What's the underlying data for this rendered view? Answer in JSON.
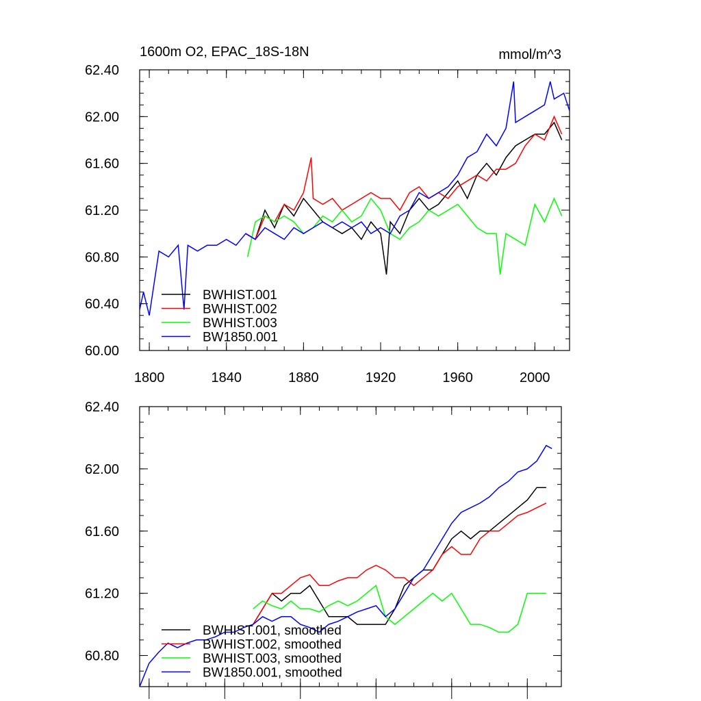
{
  "chart_data": [
    {
      "type": "line",
      "title": "1600m O2, EPAC_18S-18N",
      "units": "mmol/m^3",
      "xlim": [
        1795,
        2018
      ],
      "ylim": [
        60.0,
        62.4
      ],
      "xticks": [
        1800,
        1840,
        1880,
        1920,
        1960,
        2000
      ],
      "yticks": [
        "60.00",
        "60.40",
        "60.80",
        "61.20",
        "61.60",
        "62.00",
        "62.40"
      ],
      "legend_position": "bottom-left",
      "series": [
        {
          "name": "BWHIST.001",
          "color": "#000000",
          "x": [
            1850,
            1855,
            1860,
            1865,
            1870,
            1875,
            1880,
            1885,
            1890,
            1895,
            1900,
            1905,
            1910,
            1915,
            1920,
            1923,
            1925,
            1930,
            1935,
            1940,
            1945,
            1950,
            1955,
            1960,
            1965,
            1970,
            1975,
            1980,
            1985,
            1990,
            1995,
            2000,
            2005,
            2010,
            2014
          ],
          "values": [
            61.0,
            60.95,
            61.2,
            61.05,
            61.25,
            61.15,
            61.3,
            61.2,
            61.1,
            61.05,
            61.0,
            61.05,
            60.95,
            61.1,
            61.0,
            60.65,
            61.1,
            61.0,
            61.2,
            61.3,
            61.2,
            61.25,
            61.35,
            61.45,
            61.3,
            61.5,
            61.6,
            61.5,
            61.65,
            61.75,
            61.8,
            61.85,
            61.85,
            61.95,
            61.8
          ]
        },
        {
          "name": "BWHIST.002",
          "color": "#ff0000",
          "x": [
            1850,
            1855,
            1860,
            1865,
            1870,
            1875,
            1880,
            1884,
            1885,
            1890,
            1895,
            1900,
            1905,
            1910,
            1915,
            1920,
            1925,
            1930,
            1935,
            1940,
            1945,
            1950,
            1955,
            1960,
            1965,
            1970,
            1975,
            1980,
            1985,
            1990,
            1995,
            2000,
            2005,
            2010,
            2014
          ],
          "values": [
            61.0,
            60.95,
            61.15,
            61.1,
            61.25,
            61.2,
            61.35,
            61.65,
            61.3,
            61.25,
            61.3,
            61.2,
            61.25,
            61.3,
            61.35,
            61.3,
            61.3,
            61.2,
            61.35,
            61.4,
            61.3,
            61.35,
            61.3,
            61.4,
            61.45,
            61.5,
            61.45,
            61.55,
            61.55,
            61.6,
            61.75,
            61.85,
            61.8,
            62.0,
            61.85
          ]
        },
        {
          "name": "BWHIST.003",
          "color": "#00ff00",
          "x": [
            1851,
            1855,
            1860,
            1865,
            1870,
            1875,
            1880,
            1885,
            1890,
            1895,
            1900,
            1905,
            1910,
            1915,
            1920,
            1925,
            1930,
            1935,
            1940,
            1945,
            1950,
            1955,
            1960,
            1965,
            1970,
            1975,
            1980,
            1982,
            1985,
            1990,
            1995,
            2000,
            2005,
            2010,
            2014
          ],
          "values": [
            60.8,
            61.1,
            61.15,
            61.1,
            61.15,
            61.1,
            61.0,
            61.05,
            61.15,
            61.1,
            61.2,
            61.1,
            61.15,
            61.3,
            61.2,
            61.0,
            60.95,
            61.05,
            61.1,
            61.2,
            61.15,
            61.2,
            61.25,
            61.15,
            61.05,
            61.0,
            61.0,
            60.65,
            61.0,
            60.95,
            60.9,
            61.25,
            61.1,
            61.3,
            61.15
          ]
        },
        {
          "name": "BW1850.001",
          "color": "#0000ff",
          "x": [
            1795,
            1797,
            1800,
            1805,
            1810,
            1815,
            1818,
            1820,
            1825,
            1830,
            1835,
            1840,
            1845,
            1850,
            1855,
            1860,
            1865,
            1870,
            1875,
            1880,
            1885,
            1890,
            1895,
            1900,
            1905,
            1910,
            1915,
            1920,
            1925,
            1930,
            1935,
            1940,
            1945,
            1950,
            1955,
            1960,
            1965,
            1970,
            1975,
            1980,
            1985,
            1989,
            1990,
            1995,
            2000,
            2005,
            2008,
            2010,
            2015,
            2018
          ],
          "values": [
            60.35,
            60.5,
            60.3,
            60.85,
            60.8,
            60.9,
            60.35,
            60.9,
            60.85,
            60.9,
            60.9,
            60.95,
            60.9,
            61.0,
            60.95,
            61.05,
            61.0,
            60.95,
            61.05,
            61.0,
            61.05,
            61.1,
            61.05,
            61.1,
            61.05,
            61.1,
            61.0,
            61.05,
            61.0,
            61.15,
            61.2,
            61.35,
            61.3,
            61.35,
            61.4,
            61.5,
            61.65,
            61.7,
            61.85,
            61.75,
            61.9,
            62.3,
            61.95,
            62.0,
            62.05,
            62.1,
            62.3,
            62.15,
            62.2,
            62.05
          ]
        }
      ]
    },
    {
      "type": "line",
      "title": "",
      "xlim": [
        1795,
        2018
      ],
      "ylim": [
        60.6,
        62.4
      ],
      "yticks": [
        "60.80",
        "61.20",
        "61.60",
        "62.00",
        "62.40"
      ],
      "legend_position": "bottom-left",
      "series": [
        {
          "name": "BWHIST.001, smoothed",
          "color": "#000000",
          "x": [
            1855,
            1860,
            1865,
            1870,
            1875,
            1880,
            1885,
            1890,
            1895,
            1900,
            1905,
            1910,
            1915,
            1920,
            1925,
            1930,
            1935,
            1940,
            1945,
            1950,
            1955,
            1960,
            1965,
            1970,
            1975,
            1980,
            1985,
            1990,
            1995,
            2000,
            2005,
            2010
          ],
          "values": [
            61.0,
            61.1,
            61.2,
            61.15,
            61.2,
            61.2,
            61.25,
            61.15,
            61.05,
            61.05,
            61.05,
            61.0,
            61.0,
            61.0,
            61.0,
            61.1,
            61.25,
            61.3,
            61.35,
            61.35,
            61.45,
            61.55,
            61.6,
            61.55,
            61.6,
            61.6,
            61.65,
            61.7,
            61.75,
            61.8,
            61.88,
            61.88
          ]
        },
        {
          "name": "BWHIST.002, smoothed",
          "color": "#ff0000",
          "x": [
            1855,
            1860,
            1865,
            1870,
            1875,
            1880,
            1885,
            1890,
            1895,
            1900,
            1905,
            1910,
            1915,
            1920,
            1925,
            1930,
            1935,
            1940,
            1945,
            1950,
            1955,
            1960,
            1965,
            1970,
            1975,
            1980,
            1985,
            1990,
            1995,
            2000,
            2005,
            2010
          ],
          "values": [
            61.0,
            61.1,
            61.2,
            61.2,
            61.25,
            61.3,
            61.32,
            61.25,
            61.25,
            61.28,
            61.3,
            61.3,
            61.35,
            61.38,
            61.35,
            61.3,
            61.3,
            61.25,
            61.3,
            61.35,
            61.45,
            61.5,
            61.45,
            61.45,
            61.55,
            61.6,
            61.6,
            61.65,
            61.7,
            61.72,
            61.75,
            61.78
          ]
        },
        {
          "name": "BWHIST.003, smoothed",
          "color": "#00ff00",
          "x": [
            1855,
            1860,
            1865,
            1870,
            1875,
            1880,
            1885,
            1890,
            1895,
            1900,
            1905,
            1910,
            1915,
            1920,
            1925,
            1930,
            1935,
            1940,
            1945,
            1950,
            1955,
            1960,
            1965,
            1970,
            1975,
            1980,
            1985,
            1990,
            1995,
            2000,
            2005,
            2010
          ],
          "values": [
            61.1,
            61.15,
            61.12,
            61.1,
            61.15,
            61.1,
            61.1,
            61.08,
            61.12,
            61.15,
            61.12,
            61.15,
            61.2,
            61.25,
            61.05,
            61.0,
            61.05,
            61.1,
            61.15,
            61.2,
            61.15,
            61.2,
            61.1,
            61.0,
            61.0,
            60.98,
            60.95,
            60.95,
            61.0,
            61.2,
            61.2,
            61.2
          ]
        },
        {
          "name": "BW1850.001, smoothed",
          "color": "#0000ff",
          "x": [
            1795,
            1800,
            1805,
            1810,
            1815,
            1820,
            1825,
            1830,
            1835,
            1840,
            1845,
            1850,
            1855,
            1860,
            1865,
            1870,
            1875,
            1880,
            1885,
            1890,
            1895,
            1900,
            1905,
            1910,
            1915,
            1920,
            1925,
            1930,
            1935,
            1940,
            1945,
            1950,
            1955,
            1960,
            1965,
            1970,
            1975,
            1980,
            1985,
            1990,
            1995,
            2000,
            2005,
            2010,
            2013
          ],
          "values": [
            60.6,
            60.75,
            60.82,
            60.88,
            60.85,
            60.88,
            60.9,
            60.9,
            60.92,
            60.95,
            60.95,
            60.98,
            61.0,
            61.05,
            61.02,
            61.05,
            61.05,
            61.0,
            60.98,
            60.95,
            61.0,
            61.02,
            61.05,
            61.08,
            61.1,
            61.12,
            61.05,
            61.1,
            61.2,
            61.3,
            61.35,
            61.45,
            61.55,
            61.65,
            61.72,
            61.75,
            61.78,
            61.82,
            61.88,
            61.92,
            61.98,
            62.0,
            62.05,
            62.15,
            62.13
          ]
        }
      ]
    }
  ]
}
